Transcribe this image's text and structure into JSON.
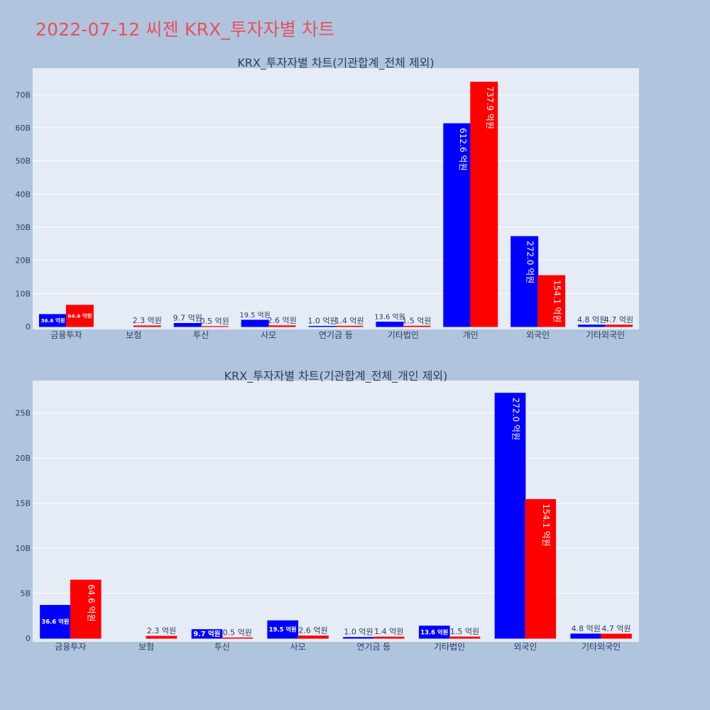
{
  "page_title": "2022-07-12 씨젠 KRX_투자자별 차트",
  "colors": {
    "buy": "#0000ff",
    "sell": "#ff0000",
    "plot_bg": "#e5ecf6",
    "page_bg": "#b0c4de",
    "title": "#e8505b"
  },
  "chart_data": [
    {
      "type": "bar",
      "title": "KRX_투자자별 차트(기관합계_전체 제외)",
      "categories": [
        "금융투자",
        "보험",
        "투신",
        "사모",
        "연기금 등",
        "기타법인",
        "개인",
        "외국인",
        "기타외국인"
      ],
      "series": [
        {
          "values": [
            3660000000,
            0,
            970000000,
            1950000000,
            100000000,
            1360000000,
            61260000000,
            27200000000,
            480000000
          ],
          "labels": [
            "36.6 억원",
            "",
            "9.7 억원",
            "19.5 억원",
            "1.0 억원",
            "13.6 억원",
            "612.6 억원",
            "272.0 억원",
            "4.8 억원"
          ]
        },
        {
          "values": [
            6460000000,
            230000000,
            50000000,
            260000000,
            140000000,
            150000000,
            73790000000,
            15410000000,
            470000000
          ],
          "labels": [
            "64.6 억원",
            "2.3 억원",
            "0.5 억원",
            "2.6 억원",
            "1.4 억원",
            "1.5 억원",
            "737.9 억원",
            "154.1 억원",
            "4.7 억원"
          ]
        }
      ],
      "ylim": [
        0,
        78000000000
      ],
      "y_ticks": [
        "0",
        "10B",
        "20B",
        "30B",
        "40B",
        "50B",
        "60B",
        "70B"
      ],
      "grid": true
    },
    {
      "type": "bar",
      "title": "KRX_투자자별 차트(기관합계_전체_개인 제외)",
      "categories": [
        "금융투자",
        "보험",
        "투신",
        "사모",
        "연기금 등",
        "기타법인",
        "외국인",
        "기타외국인"
      ],
      "series": [
        {
          "values": [
            3660000000,
            0,
            970000000,
            1950000000,
            100000000,
            1360000000,
            27200000000,
            480000000
          ],
          "labels": [
            "36.6 억원",
            "",
            "9.7 억원",
            "19.5 억원",
            "1.0 억원",
            "13.6 억원",
            "272.0 억원",
            "4.8 억원"
          ]
        },
        {
          "values": [
            6460000000,
            230000000,
            50000000,
            260000000,
            140000000,
            150000000,
            15410000000,
            470000000
          ],
          "labels": [
            "64.6 억원",
            "2.3 억원",
            "0.5 억원",
            "2.6 억원",
            "1.4 억원",
            "1.5 억원",
            "154.1 억원",
            "4.7 억원"
          ]
        }
      ],
      "ylim": [
        0,
        28600000000
      ],
      "y_ticks": [
        "0",
        "5B",
        "10B",
        "15B",
        "20B",
        "25B"
      ],
      "grid": true
    }
  ]
}
